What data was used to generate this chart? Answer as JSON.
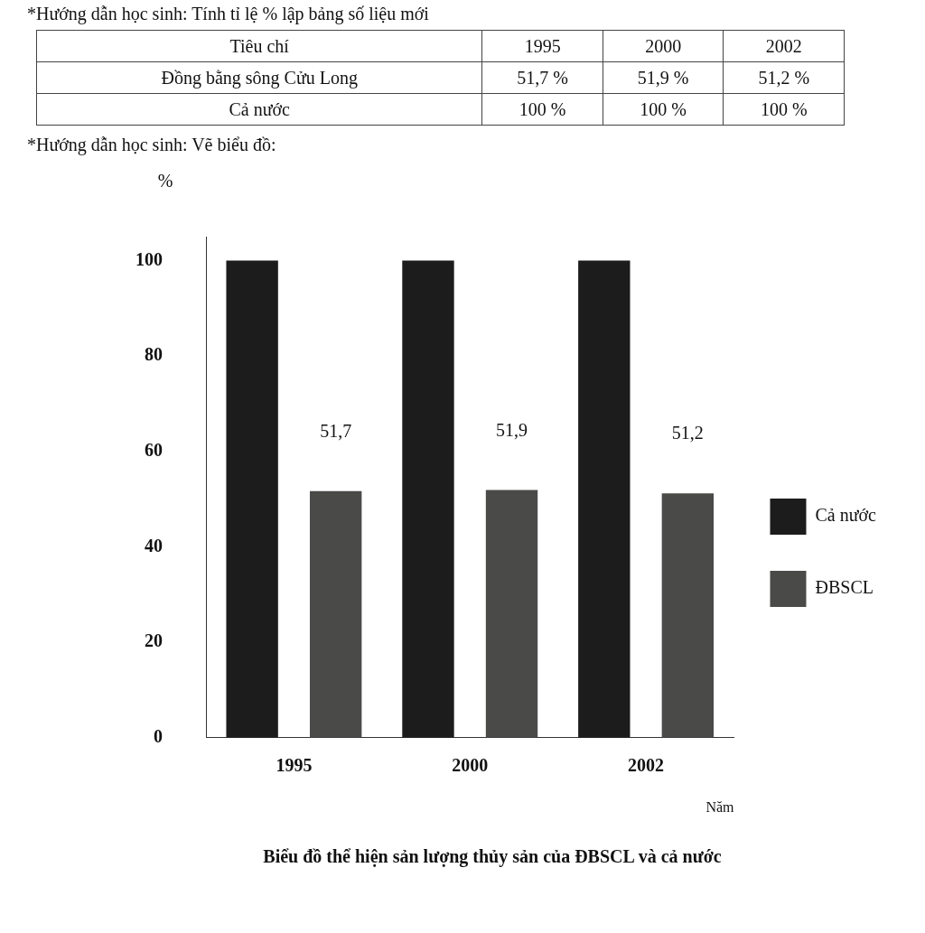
{
  "chart_data": [
    {
      "type": "other",
      "title": "*Hướng dẫn học sinh: Tính tỉ lệ % lập bảng số liệu mới",
      "annotations": [
        "Tiêu chí",
        "1995",
        "2000",
        "2002",
        "Đồng bằng sông Cửu Long",
        "51,7 %",
        "51,9 %",
        "51,2 %",
        "Cả nước",
        "100 %",
        "100 %",
        "100 %"
      ]
    },
    {
      "type": "bar",
      "title": "Biểu đồ thể hiện sản lượng thủy sản của ĐBSCL và cả nước",
      "subtitle": "*Hướng dẫn học sinh: Vẽ biểu đồ:",
      "xlabel": "Năm",
      "ylabel": "%",
      "categories": [
        "1995",
        "2000",
        "2002"
      ],
      "series": [
        {
          "name": "Cả nước",
          "color": "#1c1c1c",
          "values": [
            100,
            100,
            100
          ],
          "value_labels": [
            null,
            null,
            null
          ]
        },
        {
          "name": "ĐBSCL",
          "color": "#4a4a48",
          "values": [
            51.7,
            51.9,
            51.2
          ],
          "value_labels": [
            "51,7",
            "51,9",
            "51,2"
          ]
        }
      ],
      "ylim": [
        0,
        105
      ],
      "yticks": [
        0,
        20,
        40,
        60,
        80,
        100
      ],
      "grid": false,
      "legend": "right"
    }
  ]
}
